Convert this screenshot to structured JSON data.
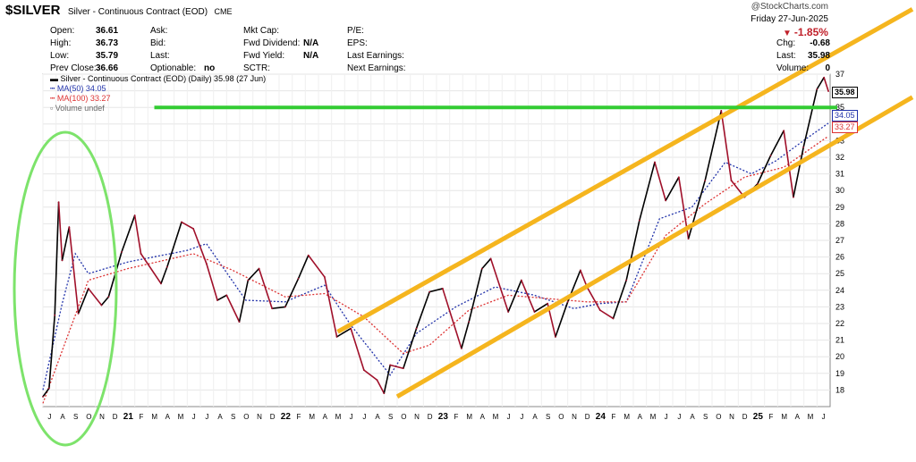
{
  "header": {
    "symbol": "$SILVER",
    "name": "Silver - Continuous Contract (EOD)",
    "exchange": "CME",
    "brand": "@StockCharts.com",
    "date": "Friday  27-Jun-2025",
    "change_pct": "-1.85%",
    "colors": {
      "down": "#c0202a"
    },
    "stats_left": [
      {
        "label": "Open:",
        "value": "36.61"
      },
      {
        "label": "High:",
        "value": "36.73"
      },
      {
        "label": "Low:",
        "value": "35.79"
      },
      {
        "label": "Prev Close:",
        "value": "36.66"
      }
    ],
    "stats_mid": [
      {
        "label": "Ask:",
        "value": ""
      },
      {
        "label": "Bid:",
        "value": ""
      },
      {
        "label": "Last:",
        "value": ""
      },
      {
        "label": "Optionable:",
        "value": "no"
      }
    ],
    "stats_mid2": [
      {
        "label": "Mkt Cap:",
        "value": ""
      },
      {
        "label": "Fwd Dividend:",
        "value": "N/A"
      },
      {
        "label": "Fwd Yield:",
        "value": "N/A"
      },
      {
        "label": "SCTR:",
        "value": ""
      }
    ],
    "stats_mid3": [
      {
        "label": "P/E:",
        "value": ""
      },
      {
        "label": "EPS:",
        "value": ""
      },
      {
        "label": "Last Earnings:",
        "value": ""
      },
      {
        "label": "Next Earnings:",
        "value": ""
      }
    ],
    "stats_right": [
      {
        "label": "Chg:",
        "value": "-0.68"
      },
      {
        "label": "Last:",
        "value": "35.98"
      },
      {
        "label": "Volume:",
        "value": "0"
      }
    ]
  },
  "legend": {
    "price": "Silver - Continuous Contract (EOD) (Daily) 35.98 (27 Jun)",
    "ma50": "MA(50) 34.05",
    "ma100": "MA(100) 33.27",
    "volume": "Volume undef"
  },
  "chips": {
    "last": "35.98",
    "ma50": "34.05",
    "ma100": "33.27"
  },
  "chart_data": {
    "type": "line",
    "title": "$SILVER Silver - Continuous Contract (EOD)",
    "xlabel": "",
    "ylabel": "",
    "ylim": [
      17,
      37
    ],
    "y_ticks": [
      18,
      19,
      20,
      21,
      22,
      23,
      24,
      25,
      26,
      27,
      28,
      29,
      30,
      31,
      32,
      33,
      34,
      35,
      36,
      37
    ],
    "y_tick_labels": [
      "18",
      "19",
      "20",
      "21",
      "22",
      "23",
      "24",
      "25",
      "26",
      "27",
      "28",
      "29",
      "30",
      "31",
      "32",
      "33",
      "34",
      "35",
      "36",
      "37"
    ],
    "x_tick_labels": [
      "J",
      "A",
      "S",
      "O",
      "N",
      "D",
      "21",
      "F",
      "M",
      "A",
      "M",
      "J",
      "J",
      "A",
      "S",
      "O",
      "N",
      "D",
      "22",
      "F",
      "M",
      "A",
      "M",
      "J",
      "J",
      "A",
      "S",
      "O",
      "N",
      "D",
      "23",
      "F",
      "M",
      "A",
      "M",
      "J",
      "J",
      "A",
      "S",
      "O",
      "N",
      "D",
      "24",
      "F",
      "M",
      "A",
      "M",
      "J",
      "J",
      "A",
      "S",
      "O",
      "N",
      "D",
      "25",
      "F",
      "M",
      "A",
      "M",
      "J"
    ],
    "x_start_month": "2020-07",
    "x_end_month": "2025-06",
    "grid": true,
    "colors": {
      "price": "#a0102a",
      "price_up": "#000000",
      "ma50": "#2233aa",
      "ma100": "#dd3333",
      "channel": "#f5b51e",
      "resistance": "#33cc33",
      "ellipse": "#7de36b"
    },
    "series": [
      {
        "name": "Silver - Continuous Contract (EOD) (Daily)",
        "x": [
          "2020-07-01",
          "2020-07-15",
          "2020-07-28",
          "2020-08-07",
          "2020-08-15",
          "2020-08-31",
          "2020-09-22",
          "2020-10-15",
          "2020-11-15",
          "2020-12-01",
          "2020-12-31",
          "2021-02-01",
          "2021-02-15",
          "2021-03-31",
          "2021-04-15",
          "2021-05-18",
          "2021-06-15",
          "2021-07-15",
          "2021-08-10",
          "2021-09-01",
          "2021-09-30",
          "2021-10-20",
          "2021-11-15",
          "2021-12-15",
          "2022-01-15",
          "2022-02-15",
          "2022-03-08",
          "2022-04-15",
          "2022-05-13",
          "2022-06-15",
          "2022-07-15",
          "2022-08-15",
          "2022-09-01",
          "2022-09-15",
          "2022-10-15",
          "2022-11-15",
          "2022-12-15",
          "2023-01-15",
          "2023-02-28",
          "2023-03-15",
          "2023-04-15",
          "2023-05-05",
          "2023-06-15",
          "2023-07-15",
          "2023-08-15",
          "2023-09-15",
          "2023-10-03",
          "2023-11-01",
          "2023-11-30",
          "2023-12-15",
          "2024-01-15",
          "2024-02-15",
          "2024-03-15",
          "2024-04-15",
          "2024-05-20",
          "2024-06-15",
          "2024-07-15",
          "2024-08-07",
          "2024-09-15",
          "2024-10-22",
          "2024-11-15",
          "2024-12-15",
          "2025-01-15",
          "2025-02-15",
          "2025-03-15",
          "2025-04-07",
          "2025-04-30",
          "2025-06-01",
          "2025-06-17",
          "2025-06-27"
        ],
        "y": [
          17.6,
          18.1,
          22.5,
          29.3,
          25.8,
          27.8,
          22.6,
          24.1,
          23.1,
          23.6,
          26.3,
          28.5,
          26.2,
          24.4,
          25.4,
          28.1,
          27.7,
          25.6,
          23.4,
          23.7,
          22.1,
          24.6,
          25.3,
          22.9,
          23.0,
          24.7,
          26.1,
          24.8,
          21.2,
          21.7,
          19.2,
          18.6,
          17.8,
          19.5,
          19.3,
          21.7,
          23.9,
          24.1,
          20.5,
          22.1,
          25.3,
          25.9,
          22.7,
          24.6,
          22.7,
          23.2,
          21.2,
          23.3,
          25.2,
          24.2,
          22.8,
          22.3,
          24.6,
          28.2,
          31.7,
          29.4,
          30.8,
          27.1,
          30.6,
          34.8,
          30.6,
          29.6,
          30.4,
          32.1,
          33.6,
          29.6,
          32.6,
          36.1,
          36.8,
          35.98
        ]
      },
      {
        "name": "MA(50)",
        "x": [
          "2020-07-01",
          "2020-08-15",
          "2020-09-15",
          "2020-10-15",
          "2021-01-15",
          "2021-05-31",
          "2021-07-15",
          "2021-10-15",
          "2022-01-15",
          "2022-04-15",
          "2022-06-15",
          "2022-09-15",
          "2022-11-15",
          "2023-02-15",
          "2023-05-15",
          "2023-08-15",
          "2023-11-15",
          "2024-01-15",
          "2024-03-15",
          "2024-05-31",
          "2024-08-15",
          "2024-10-31",
          "2024-12-31",
          "2025-02-28",
          "2025-04-30",
          "2025-06-27"
        ],
        "y": [
          18.0,
          23.2,
          26.2,
          25.0,
          25.7,
          26.4,
          26.8,
          23.4,
          23.3,
          24.3,
          21.9,
          18.9,
          21.4,
          23.0,
          24.2,
          23.7,
          22.9,
          23.2,
          23.3,
          28.3,
          29.0,
          31.7,
          31.0,
          31.8,
          33.0,
          34.05
        ]
      },
      {
        "name": "MA(100)",
        "x": [
          "2020-07-01",
          "2020-08-31",
          "2020-10-15",
          "2021-01-15",
          "2021-06-15",
          "2021-09-15",
          "2022-01-15",
          "2022-04-15",
          "2022-07-15",
          "2022-10-15",
          "2022-12-15",
          "2023-03-15",
          "2023-06-15",
          "2023-09-15",
          "2023-12-15",
          "2024-03-15",
          "2024-06-15",
          "2024-09-15",
          "2024-12-15",
          "2025-03-15",
          "2025-06-27"
        ],
        "y": [
          17.2,
          21.5,
          24.6,
          25.3,
          26.2,
          25.2,
          23.6,
          23.8,
          22.4,
          20.2,
          20.7,
          22.8,
          23.7,
          23.5,
          23.3,
          23.3,
          27.3,
          29.2,
          30.8,
          31.4,
          33.27
        ]
      }
    ],
    "annotations": [
      {
        "type": "trendline",
        "name": "upper channel",
        "x": [
          "2022-05-15",
          "2025-06-27"
        ],
        "y": [
          21.5,
          37.9
        ]
      },
      {
        "type": "trendline",
        "name": "lower channel",
        "x": [
          "2022-10-01",
          "2025-06-27"
        ],
        "y": [
          17.6,
          34.0
        ]
      },
      {
        "type": "hline",
        "name": "resistance",
        "y": 35.0,
        "x": [
          "2021-02-15",
          "2025-06-27"
        ]
      },
      {
        "type": "ellipse",
        "name": "breakout highlight",
        "x_range": [
          "2020-06-01",
          "2020-11-15"
        ]
      }
    ]
  }
}
